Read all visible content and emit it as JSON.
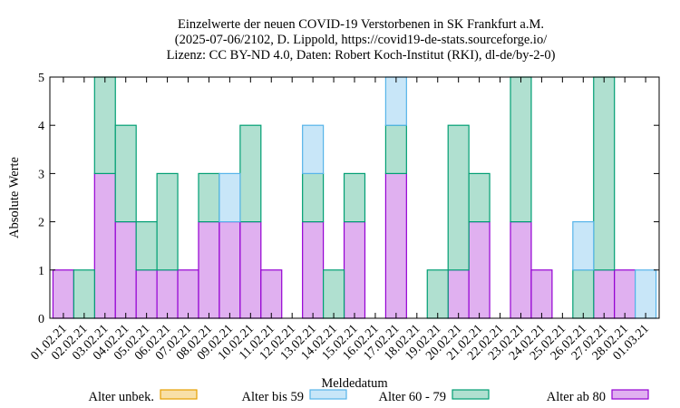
{
  "chart_data": {
    "type": "bar",
    "stacked": true,
    "title_lines": [
      "Einzelwerte der neuen COVID-19 Verstorbenen in SK Frankfurt a.M.",
      "(2025-07-06/2102, D. Lippold, https://covid19-de-stats.sourceforge.io/",
      "Lizenz: CC BY-ND 4.0, Daten: Robert Koch-Institut (RKI), dl-de/by-2-0)"
    ],
    "xlabel": "Meldedatum",
    "ylabel": "Absolute Werte",
    "ylim": [
      0,
      5
    ],
    "yticks": [
      0,
      1,
      2,
      3,
      4,
      5
    ],
    "categories": [
      "01.02.21",
      "02.02.21",
      "03.02.21",
      "04.02.21",
      "05.02.21",
      "06.02.21",
      "07.02.21",
      "08.02.21",
      "09.02.21",
      "10.02.21",
      "11.02.21",
      "12.02.21",
      "13.02.21",
      "14.02.21",
      "15.02.21",
      "16.02.21",
      "17.02.21",
      "18.02.21",
      "19.02.21",
      "20.02.21",
      "21.02.21",
      "22.02.21",
      "23.02.21",
      "24.02.21",
      "25.02.21",
      "26.02.21",
      "27.02.21",
      "28.02.21",
      "01.03.21"
    ],
    "series": [
      {
        "name": "Alter ab 80",
        "color": "#e0b0f0",
        "stroke": "#9400d3",
        "values": [
          1,
          0,
          3,
          2,
          1,
          1,
          1,
          2,
          2,
          2,
          1,
          0,
          2,
          0,
          2,
          0,
          3,
          0,
          0,
          1,
          2,
          0,
          2,
          1,
          0,
          0,
          1,
          1,
          0
        ]
      },
      {
        "name": "Alter 60 - 79",
        "color": "#b0e0d0",
        "stroke": "#009e73",
        "values": [
          0,
          1,
          2,
          2,
          1,
          2,
          0,
          1,
          0,
          2,
          0,
          0,
          1,
          1,
          1,
          0,
          1,
          0,
          1,
          3,
          1,
          0,
          3,
          0,
          0,
          1,
          4,
          0,
          0
        ]
      },
      {
        "name": "Alter bis 59",
        "color": "#c8e6f8",
        "stroke": "#56b4e9",
        "values": [
          0,
          0,
          0,
          0,
          0,
          0,
          0,
          0,
          1,
          0,
          0,
          0,
          1,
          0,
          0,
          0,
          1,
          0,
          0,
          0,
          0,
          0,
          0,
          0,
          0,
          1,
          0,
          0,
          1
        ]
      },
      {
        "name": "Alter unbek.",
        "color": "#f8e0a8",
        "stroke": "#e69f00",
        "values": [
          0,
          0,
          0,
          0,
          0,
          0,
          0,
          0,
          0,
          0,
          0,
          0,
          0,
          0,
          0,
          0,
          0,
          0,
          0,
          0,
          0,
          0,
          0,
          0,
          0,
          0,
          0,
          0,
          0
        ]
      }
    ],
    "legend_order": [
      "Alter unbek.",
      "Alter bis 59",
      "Alter 60 - 79",
      "Alter ab 80"
    ],
    "legend_position": "bottom",
    "grid": false
  }
}
